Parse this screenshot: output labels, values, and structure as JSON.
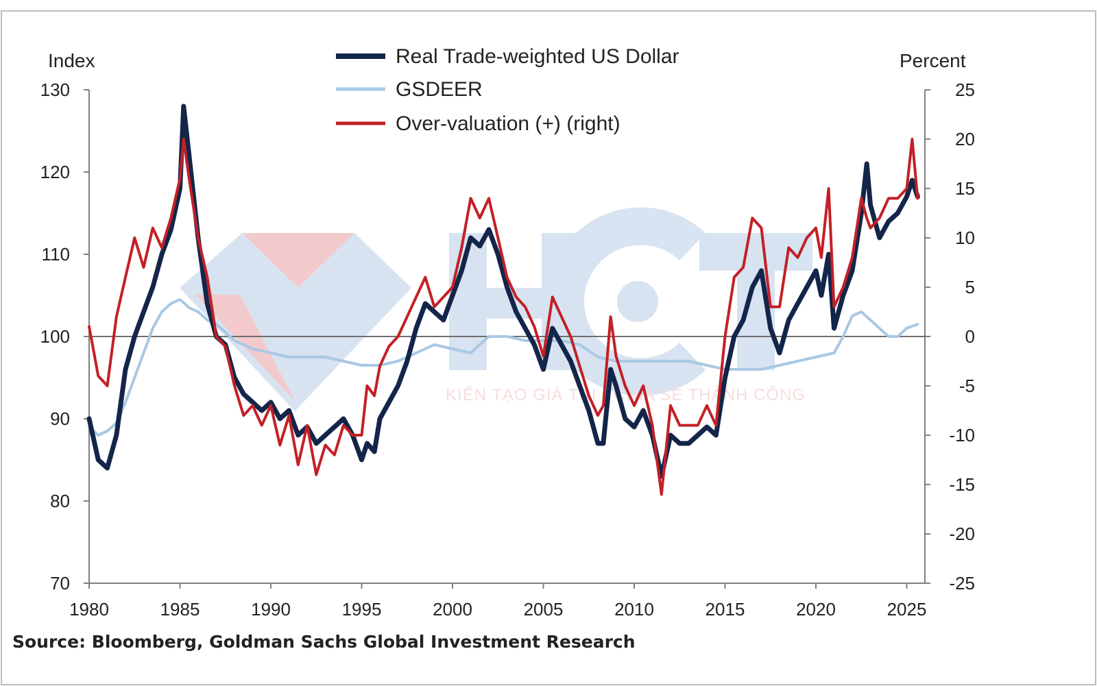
{
  "colors": {
    "rtw_usd": "#14254a",
    "gsdeer": "#a9c8e3",
    "overvaluation": "#c32026",
    "axis": "#7f7f7f",
    "watermark_red": "#e8a0a4",
    "watermark_blue": "#b7cde6"
  },
  "watermark": {
    "logo_text": "HCT",
    "tagline": "KIẾN TẠO GIÁ TRỊ - CHIA SẺ THÀNH CÔNG"
  },
  "source": "Source: Bloomberg, Goldman Sachs Global Investment Research",
  "chart_data": {
    "type": "line",
    "y_left_label": "Index",
    "y_right_label": "Percent",
    "ylim_left": [
      70,
      130
    ],
    "ylim_right": [
      -25,
      25
    ],
    "xlim": [
      1980,
      2026
    ],
    "x_ticks": [
      "1980",
      "1985",
      "1990",
      "1995",
      "2000",
      "2005",
      "2010",
      "2015",
      "2020",
      "2025"
    ],
    "y_left_ticks": [
      "130",
      "120",
      "110",
      "100",
      "90",
      "80",
      "70"
    ],
    "y_right_ticks": [
      "25",
      "20",
      "15",
      "10",
      "5",
      "0",
      "-5",
      "-10",
      "-15",
      "-20",
      "-25"
    ],
    "legend_position": "top-center",
    "reference_line_left": 100,
    "series": [
      {
        "name": "Real Trade-weighted US Dollar",
        "axis": "left",
        "x": [
          1980.0,
          1980.5,
          1981.0,
          1981.5,
          1982.0,
          1982.5,
          1983.0,
          1983.5,
          1984.0,
          1984.5,
          1985.0,
          1985.2,
          1985.5,
          1986.0,
          1986.5,
          1987.0,
          1987.5,
          1988.0,
          1988.5,
          1989.0,
          1989.5,
          1990.0,
          1990.5,
          1991.0,
          1991.5,
          1992.0,
          1992.5,
          1993.0,
          1993.5,
          1994.0,
          1994.5,
          1995.0,
          1995.3,
          1995.7,
          1996.0,
          1996.5,
          1997.0,
          1997.5,
          1998.0,
          1998.5,
          1999.0,
          1999.5,
          2000.0,
          2000.5,
          2001.0,
          2001.5,
          2002.0,
          2002.5,
          2003.0,
          2003.5,
          2004.0,
          2004.5,
          2005.0,
          2005.5,
          2006.0,
          2006.5,
          2007.0,
          2007.5,
          2008.0,
          2008.3,
          2008.7,
          2009.0,
          2009.5,
          2010.0,
          2010.5,
          2011.0,
          2011.5,
          2012.0,
          2012.5,
          2013.0,
          2013.5,
          2014.0,
          2014.5,
          2015.0,
          2015.5,
          2016.0,
          2016.5,
          2017.0,
          2017.5,
          2018.0,
          2018.5,
          2019.0,
          2019.5,
          2020.0,
          2020.3,
          2020.7,
          2021.0,
          2021.5,
          2022.0,
          2022.5,
          2022.8,
          2023.0,
          2023.5,
          2024.0,
          2024.5,
          2025.0,
          2025.3,
          2025.6
        ],
        "values": [
          90,
          85,
          84,
          88,
          96,
          100,
          103,
          106,
          110,
          113,
          118,
          128,
          122,
          112,
          104,
          100,
          99,
          95,
          93,
          92,
          91,
          92,
          90,
          91,
          88,
          89,
          87,
          88,
          89,
          90,
          88,
          85,
          87,
          86,
          90,
          92,
          94,
          97,
          101,
          104,
          103,
          102,
          105,
          108,
          112,
          111,
          113,
          110,
          106,
          103,
          101,
          99,
          96,
          101,
          99,
          97,
          94,
          91,
          87,
          87,
          96,
          94,
          90,
          89,
          91,
          88,
          83,
          88,
          87,
          87,
          88,
          89,
          88,
          95,
          100,
          102,
          106,
          108,
          101,
          98,
          102,
          104,
          106,
          108,
          105,
          110,
          101,
          105,
          108,
          115,
          121,
          116,
          112,
          114,
          115,
          117,
          119,
          117
        ]
      },
      {
        "name": "GSDEER",
        "axis": "left",
        "x": [
          1980.0,
          1980.5,
          1981.0,
          1981.5,
          1982.0,
          1982.5,
          1983.0,
          1983.5,
          1984.0,
          1984.5,
          1985.0,
          1985.5,
          1986.0,
          1986.5,
          1987.0,
          1987.5,
          1988.0,
          1988.5,
          1989.0,
          1990.0,
          1991.0,
          1992.0,
          1993.0,
          1994.0,
          1995.0,
          1996.0,
          1997.0,
          1998.0,
          1999.0,
          2000.0,
          2001.0,
          2002.0,
          2003.0,
          2004.0,
          2005.0,
          2006.0,
          2007.0,
          2008.0,
          2009.0,
          2010.0,
          2011.0,
          2012.0,
          2013.0,
          2014.0,
          2015.0,
          2016.0,
          2017.0,
          2018.0,
          2019.0,
          2020.0,
          2021.0,
          2021.5,
          2022.0,
          2022.5,
          2023.0,
          2023.5,
          2024.0,
          2024.5,
          2025.0,
          2025.6
        ],
        "values": [
          89,
          88,
          88.5,
          89.5,
          92,
          95,
          98,
          101,
          103,
          104,
          104.5,
          103.5,
          103,
          102,
          101.5,
          100.5,
          99.5,
          99,
          98.5,
          98,
          97.5,
          97.5,
          97.5,
          97,
          96.5,
          96.5,
          97,
          98,
          99,
          98.5,
          98,
          100,
          100,
          99.5,
          99.5,
          99.5,
          99,
          97.5,
          97,
          97,
          97,
          97,
          97,
          96.5,
          96,
          96,
          96,
          96.5,
          97,
          97.5,
          98,
          100,
          102.5,
          103,
          102,
          101,
          100,
          100,
          101,
          101.5
        ]
      },
      {
        "name": "Over-valuation (+) (right)",
        "axis": "right",
        "x": [
          1980.0,
          1980.5,
          1981.0,
          1981.5,
          1982.0,
          1982.5,
          1983.0,
          1983.5,
          1984.0,
          1984.5,
          1985.0,
          1985.2,
          1985.5,
          1986.0,
          1986.5,
          1987.0,
          1987.5,
          1988.0,
          1988.5,
          1989.0,
          1989.5,
          1990.0,
          1990.5,
          1991.0,
          1991.5,
          1992.0,
          1992.5,
          1993.0,
          1993.5,
          1994.0,
          1994.5,
          1995.0,
          1995.3,
          1995.7,
          1996.0,
          1996.5,
          1997.0,
          1997.5,
          1998.0,
          1998.5,
          1999.0,
          1999.5,
          2000.0,
          2000.5,
          2001.0,
          2001.5,
          2002.0,
          2002.5,
          2003.0,
          2003.5,
          2004.0,
          2004.5,
          2005.0,
          2005.5,
          2006.0,
          2006.5,
          2007.0,
          2007.5,
          2008.0,
          2008.3,
          2008.7,
          2009.0,
          2009.5,
          2010.0,
          2010.5,
          2011.0,
          2011.5,
          2012.0,
          2012.5,
          2013.0,
          2013.5,
          2014.0,
          2014.5,
          2015.0,
          2015.5,
          2016.0,
          2016.5,
          2017.0,
          2017.5,
          2018.0,
          2018.5,
          2019.0,
          2019.5,
          2020.0,
          2020.3,
          2020.7,
          2021.0,
          2021.5,
          2022.0,
          2022.5,
          2022.8,
          2023.0,
          2023.5,
          2024.0,
          2024.5,
          2025.0,
          2025.3,
          2025.6
        ],
        "values": [
          1,
          -4,
          -5,
          2,
          6,
          10,
          7,
          11,
          9,
          12,
          16,
          20,
          16,
          10,
          6,
          0,
          -1,
          -5,
          -8,
          -7,
          -9,
          -7,
          -11,
          -8,
          -13,
          -9,
          -14,
          -11,
          -12,
          -9,
          -10,
          -10,
          -5,
          -6,
          -3,
          -1,
          0,
          2,
          4,
          6,
          3,
          4,
          5,
          9,
          14,
          12,
          14,
          10,
          6,
          4,
          3,
          1,
          -2,
          4,
          2,
          0,
          -3,
          -6,
          -8,
          -7,
          2,
          -2,
          -5,
          -7,
          -5,
          -9,
          -16,
          -7,
          -9,
          -9,
          -9,
          -7,
          -9,
          0,
          6,
          7,
          12,
          11,
          3,
          3,
          9,
          8,
          10,
          11,
          8,
          15,
          3,
          5,
          8,
          14,
          12,
          11,
          12,
          14,
          14,
          15,
          20,
          14
        ]
      }
    ]
  }
}
